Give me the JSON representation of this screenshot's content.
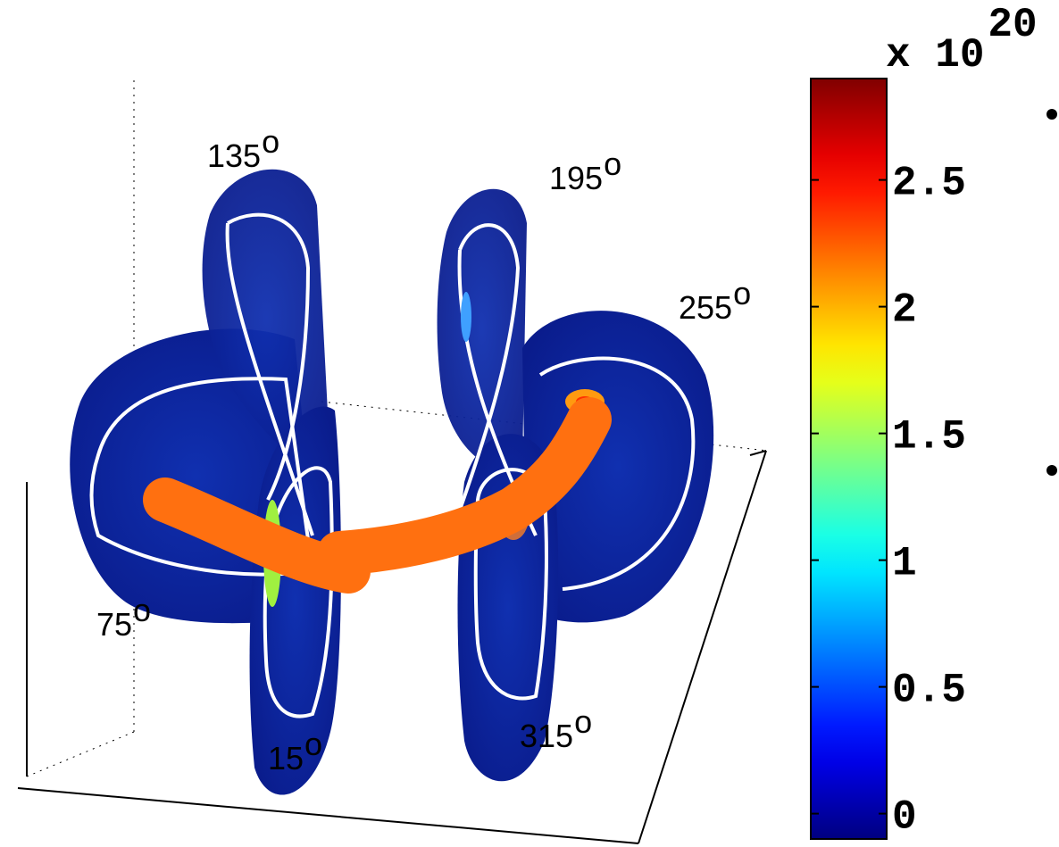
{
  "figure": {
    "angle_labels": [
      {
        "number": "135",
        "sup": "o"
      },
      {
        "number": "195",
        "sup": "o"
      },
      {
        "number": "255",
        "sup": "o"
      },
      {
        "number": "75",
        "sup": "o"
      },
      {
        "number": "15",
        "sup": "o"
      },
      {
        "number": "315",
        "sup": "o"
      }
    ],
    "colorbar": {
      "multiplier": "x 10",
      "exponent": "20",
      "colormap": "jet",
      "lim": [
        -0.1,
        2.9
      ],
      "ticks": [
        0,
        {
          "value": 0.5,
          "label": "0.5"
        },
        1,
        {
          "value": 1.5,
          "label": "1.5"
        },
        2,
        {
          "value": 2.5,
          "label": "2.5"
        }
      ]
    }
  }
}
